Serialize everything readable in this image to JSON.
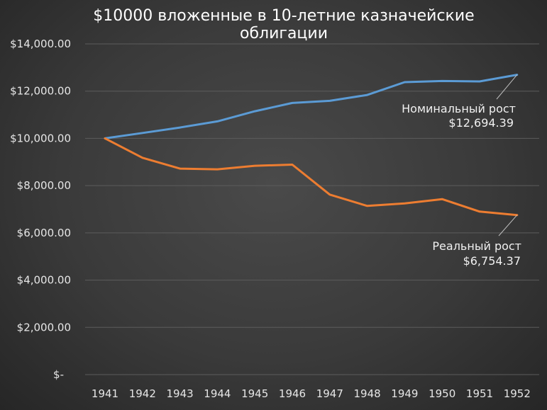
{
  "chart_data": {
    "type": "line",
    "title_lines": [
      "$10000 вложенные в 10-летние казначейские",
      "облигации"
    ],
    "categories": [
      "1941",
      "1942",
      "1943",
      "1944",
      "1945",
      "1946",
      "1947",
      "1948",
      "1949",
      "1950",
      "1951",
      "1952"
    ],
    "series": [
      {
        "color": "#5b9bd5",
        "values": [
          10000,
          10230,
          10460,
          10720,
          11150,
          11500,
          11590,
          11840,
          12380,
          12430,
          12410,
          12694.39
        ]
      },
      {
        "color": "#ed7d31",
        "values": [
          10000,
          9180,
          8720,
          8690,
          8840,
          8890,
          7620,
          7140,
          7250,
          7430,
          6900,
          6754.37
        ]
      }
    ],
    "annotations": [
      {
        "label": "Номинальный рост",
        "value": "$12,694.39"
      },
      {
        "label": "Реальный рост",
        "value": "$6,754.37"
      }
    ],
    "y_ticks": [
      "$-",
      "$2,000.00",
      "$4,000.00",
      "$6,000.00",
      "$8,000.00",
      "$10,000.00",
      "$12,000.00",
      "$14,000.00"
    ],
    "ylim": [
      0,
      14000
    ],
    "y_step": 2000,
    "grid": true,
    "legend": "none"
  }
}
